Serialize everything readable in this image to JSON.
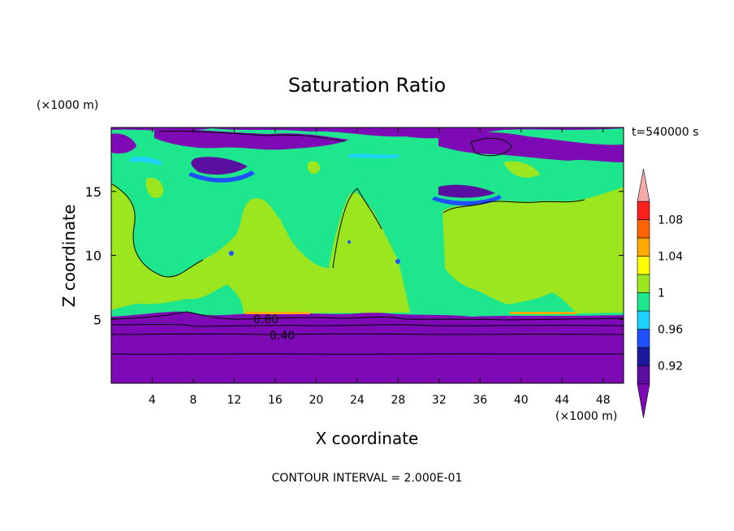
{
  "chart_data": {
    "type": "heatmap",
    "title": "Saturation Ratio",
    "xlabel": "X coordinate",
    "ylabel": "Z coordinate",
    "x_unit": "(×1000 m)",
    "y_unit": "(×1000 m)",
    "time_label": "t=540000 s",
    "footer": "CONTOUR INTERVAL = 2.000E-01",
    "xlim": [
      0,
      50
    ],
    "ylim": [
      0,
      20
    ],
    "x_ticks": [
      4,
      8,
      12,
      16,
      20,
      24,
      28,
      32,
      36,
      40,
      44,
      48
    ],
    "y_ticks": [
      5,
      10,
      15
    ],
    "contour_labels": [
      {
        "text": "0.80",
        "x": 15.5,
        "z": 5.0
      },
      {
        "text": "0.40",
        "x": 17.0,
        "z": 3.8
      }
    ],
    "colorbar": {
      "levels": [
        0.9,
        0.92,
        0.94,
        0.96,
        0.98,
        1.0,
        1.02,
        1.04,
        1.06,
        1.08,
        1.1
      ],
      "colors": [
        "#5a0fa0",
        "#1a1aa0",
        "#1e50ff",
        "#1ed2ff",
        "#1ee68c",
        "#9be61e",
        "#ffff00",
        "#ffaa00",
        "#ff6400",
        "#ff1e1e"
      ],
      "under_color": "#7d0ab4",
      "over_color": "#f5aaaa",
      "tick_labels": [
        "1.08",
        "1.04",
        "1",
        "0.96",
        "0.92"
      ],
      "tick_values": [
        1.08,
        1.04,
        1.0,
        0.96,
        0.92
      ]
    }
  }
}
